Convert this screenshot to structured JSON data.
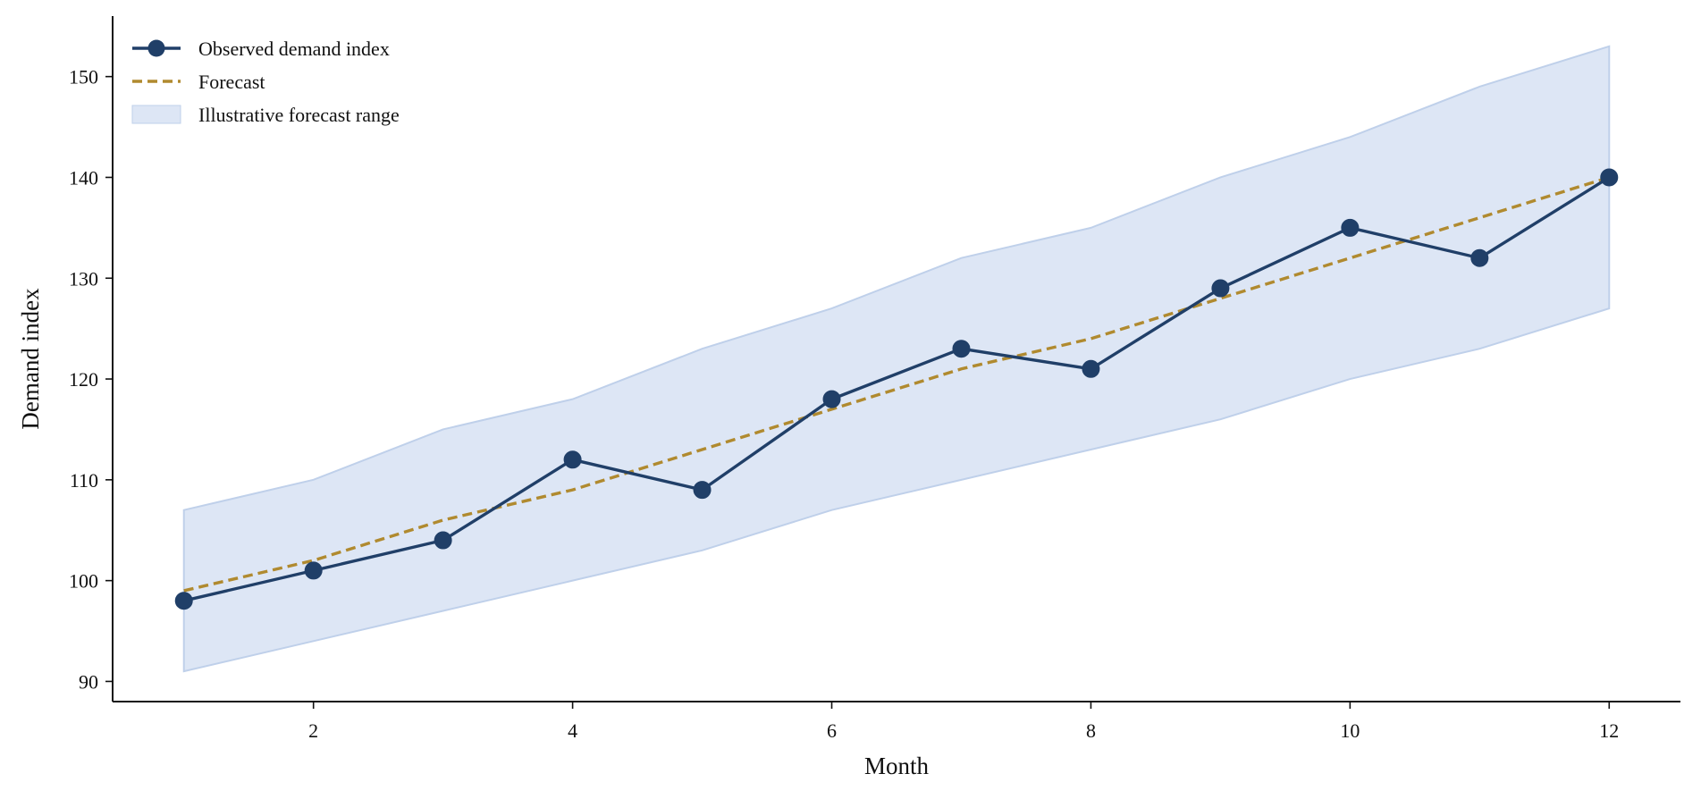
{
  "chart_data": {
    "type": "line",
    "title": "",
    "xlabel": "Month",
    "ylabel": "Demand index",
    "x": [
      1,
      2,
      3,
      4,
      5,
      6,
      7,
      8,
      9,
      10,
      11,
      12
    ],
    "xlim": [
      0.45,
      12.55
    ],
    "ylim": [
      88,
      156
    ],
    "xticks": [
      2,
      4,
      6,
      8,
      10,
      12
    ],
    "yticks": [
      90,
      100,
      110,
      120,
      130,
      140,
      150
    ],
    "grid": false,
    "legend_position": "top-left",
    "series": [
      {
        "name": "Observed demand index",
        "type": "line-marker",
        "color": "#203f68",
        "values": [
          98,
          101,
          104,
          112,
          109,
          118,
          123,
          121,
          129,
          135,
          132,
          140
        ]
      },
      {
        "name": "Forecast",
        "type": "dashed-line",
        "color": "#b08a2f",
        "values": [
          99,
          102,
          106,
          109,
          113,
          117,
          121,
          124,
          128,
          132,
          136,
          140
        ]
      },
      {
        "name": "Illustrative forecast range",
        "type": "band",
        "color": "#c7d6ee",
        "lower": [
          91,
          94,
          97,
          100,
          103,
          107,
          110,
          113,
          116,
          120,
          123,
          127
        ],
        "upper": [
          107,
          110,
          115,
          118,
          123,
          127,
          132,
          135,
          140,
          144,
          149,
          153
        ]
      }
    ]
  }
}
